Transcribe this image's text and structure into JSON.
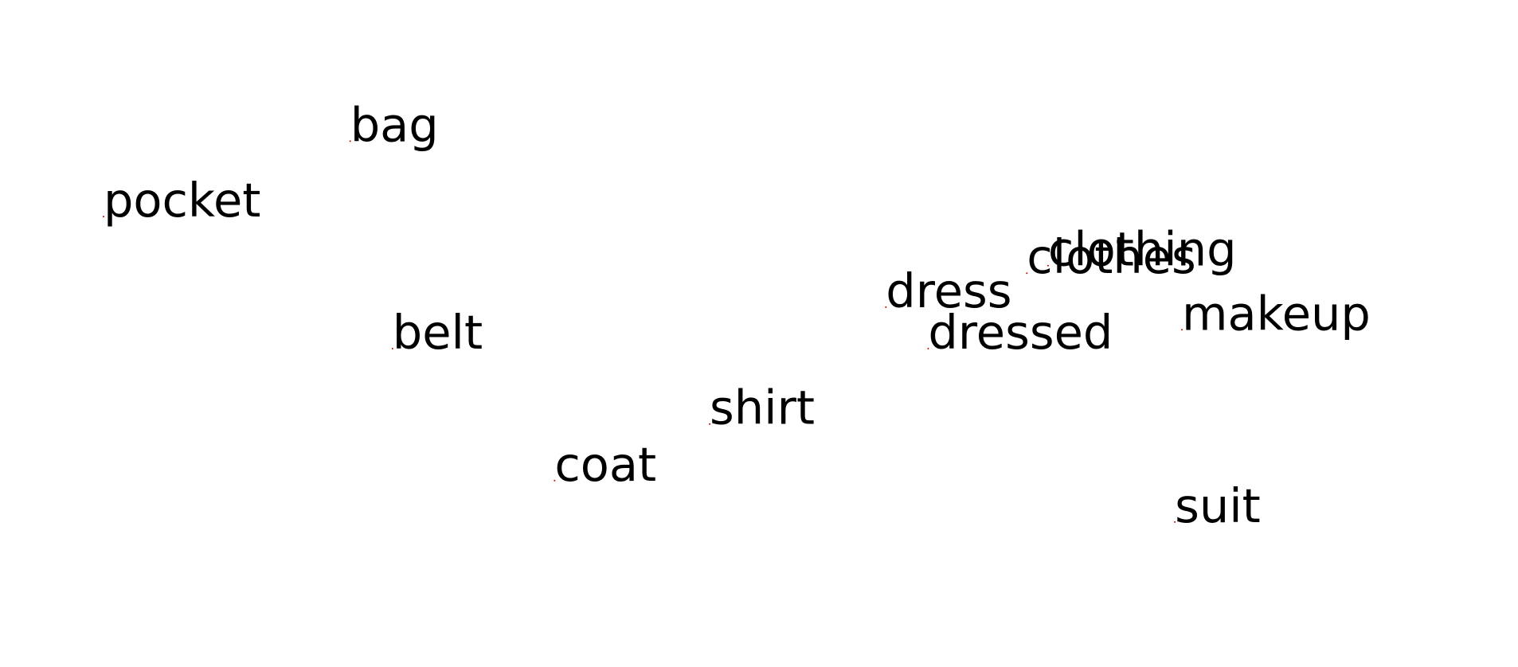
{
  "chart_data": {
    "type": "scatter",
    "title": "",
    "xlabel": "",
    "ylabel": "",
    "grid": false,
    "axes_visible": false,
    "point_color": "#cc0000",
    "label_color": "#000000",
    "xlim": [
      -1.0,
      1.0
    ],
    "ylim": [
      -0.8,
      0.8
    ],
    "points": [
      {
        "label": "bag",
        "x": -0.58,
        "y": 0.51
      },
      {
        "label": "pocket",
        "x": -0.93,
        "y": 0.31
      },
      {
        "label": "belt",
        "x": -0.52,
        "y": -0.04
      },
      {
        "label": "shirt",
        "x": -0.07,
        "y": -0.24
      },
      {
        "label": "coat",
        "x": -0.29,
        "y": -0.39
      },
      {
        "label": "dress",
        "x": 0.18,
        "y": 0.07
      },
      {
        "label": "dressed",
        "x": 0.24,
        "y": -0.04
      },
      {
        "label": "clothes",
        "x": 0.38,
        "y": 0.16
      },
      {
        "label": "clothing",
        "x": 0.41,
        "y": 0.18
      },
      {
        "label": "makeup",
        "x": 0.6,
        "y": 0.01
      },
      {
        "label": "suit",
        "x": 0.59,
        "y": -0.5
      }
    ]
  }
}
